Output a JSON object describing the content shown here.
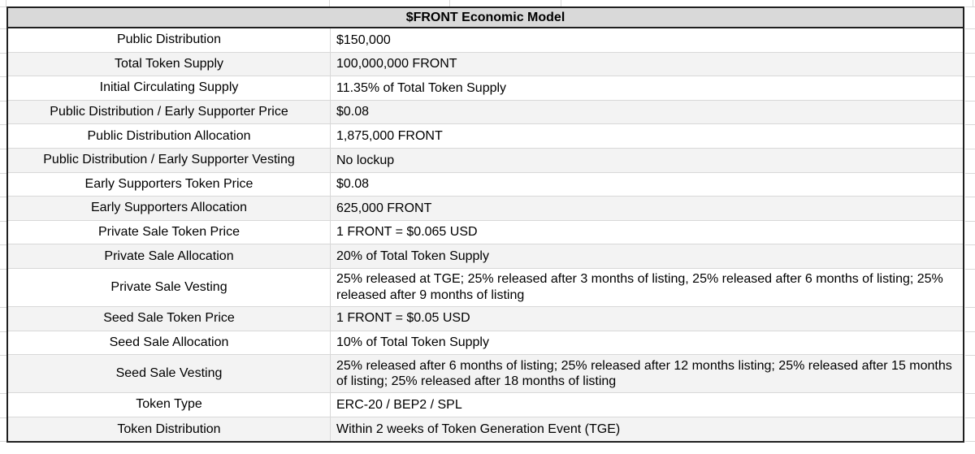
{
  "table": {
    "title": "$FRONT Economic Model",
    "colors": {
      "page_bg": "#ffffff",
      "header_bg": "#d9d9d9",
      "row_bg": "#ffffff",
      "alt_row_bg": "#f3f3f3",
      "outer_border": "#1f1f1f",
      "grid_line": "#d8d8d8",
      "text_color": "#000000"
    },
    "rows": [
      {
        "label": "Public Distribution",
        "value": "$150,000"
      },
      {
        "label": "Total Token Supply",
        "value": "100,000,000 FRONT"
      },
      {
        "label": "Initial Circulating Supply",
        "value": "11.35% of Total Token Supply"
      },
      {
        "label": "Public Distribution / Early Supporter Price",
        "value": "$0.08"
      },
      {
        "label": "Public Distribution Allocation",
        "value": "1,875,000 FRONT"
      },
      {
        "label": "Public Distribution / Early Supporter Vesting",
        "value": "No lockup"
      },
      {
        "label": "Early Supporters Token Price",
        "value": "$0.08"
      },
      {
        "label": "Early Supporters Allocation",
        "value": "625,000 FRONT"
      },
      {
        "label": "Private Sale Token Price",
        "value": "1 FRONT = $0.065 USD"
      },
      {
        "label": "Private Sale Allocation",
        "value": "20% of Total Token Supply"
      },
      {
        "label": "Private Sale Vesting",
        "value": "25% released at TGE; 25% released after 3 months of listing, 25% released after 6 months of listing; 25% released after 9 months of listing",
        "tall": true
      },
      {
        "label": "Seed Sale Token Price",
        "value": "1 FRONT = $0.05 USD"
      },
      {
        "label": "Seed Sale Allocation",
        "value": "10% of Total Token Supply"
      },
      {
        "label": "Seed Sale Vesting",
        "value": "25% released after 6 months of listing; 25% released after 12 months listing; 25% released after 15 months of listing; 25% released after 18 months of listing",
        "tall": true
      },
      {
        "label": "Token Type",
        "value": "ERC-20 / BEP2 / SPL"
      },
      {
        "label": "Token Distribution",
        "value": "Within 2 weeks of Token Generation Event (TGE)"
      }
    ]
  }
}
